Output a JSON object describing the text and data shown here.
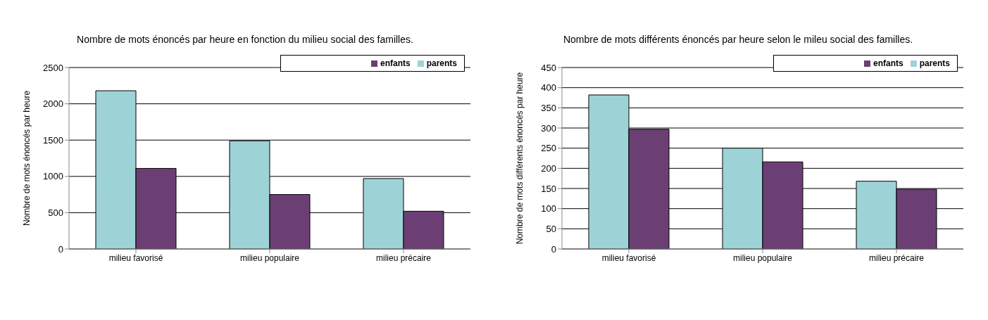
{
  "chart_data": [
    {
      "type": "bar",
      "title": "Nombre de mots énoncés par heure en fonction du milieu social des familles.",
      "ylabel": "Nombre de mots énoncés par heure",
      "categories": [
        "milieu favorisé",
        "milieu populaire",
        "milieu précaire"
      ],
      "series": [
        {
          "name": "parents",
          "color": "#9dd3d6",
          "values": [
            2180,
            1490,
            970
          ]
        },
        {
          "name": "enfants",
          "color": "#6b3f74",
          "values": [
            1110,
            750,
            520
          ]
        }
      ],
      "ylim": [
        0,
        2500
      ],
      "yticks": [
        0,
        500,
        1000,
        1500,
        2000,
        2500
      ],
      "grid": "y",
      "legend": "top right"
    },
    {
      "type": "bar",
      "title": "Nombre de mots différents énoncés par heure selon le mileu social des familles.",
      "ylabel": "Nombre de mots différents énoncés par heure",
      "categories": [
        "milieu favorisé",
        "milieu populaire",
        "milieu précaire"
      ],
      "series": [
        {
          "name": "parents",
          "color": "#9dd3d6",
          "values": [
            382,
            250,
            168
          ]
        },
        {
          "name": "enfants",
          "color": "#6b3f74",
          "values": [
            297,
            216,
            148
          ]
        }
      ],
      "ylim": [
        0,
        450
      ],
      "yticks": [
        0,
        50,
        100,
        150,
        200,
        250,
        300,
        350,
        400,
        450
      ],
      "grid": "y",
      "legend": "top right"
    }
  ]
}
